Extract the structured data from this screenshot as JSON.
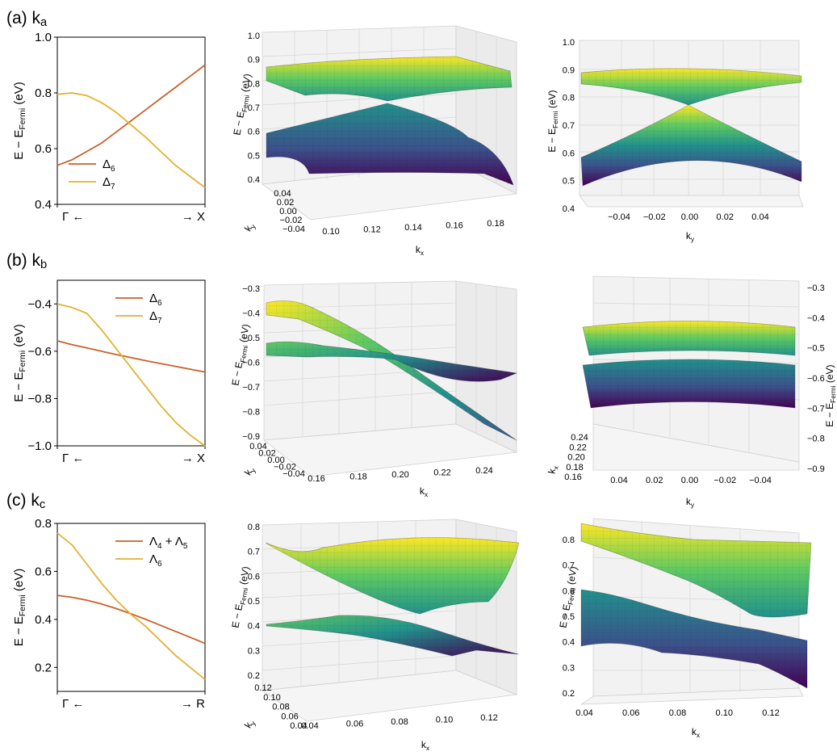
{
  "colors": {
    "delta6": "#c8612a",
    "delta7": "#e3b133",
    "viridis": [
      "#440154",
      "#3b528b",
      "#21918c",
      "#5ec962",
      "#fde725"
    ]
  },
  "panel_labels": [
    {
      "prefix": "(a) k",
      "sub": "a"
    },
    {
      "prefix": "(b) k",
      "sub": "b"
    },
    {
      "prefix": "(c) k",
      "sub": "c"
    }
  ],
  "chart_data": [
    {
      "type": "line",
      "row": "a",
      "ylabel": {
        "main": "E − E",
        "sub": "Fermi",
        "tail": " (eV)"
      },
      "xticks": {
        "left": "Γ ←",
        "right": "→ X"
      },
      "ylim": [
        0.4,
        1.0
      ],
      "yticks": [
        0.4,
        0.6,
        0.8,
        1.0
      ],
      "ytick_labels": [
        "0.4",
        "0.6",
        "0.8",
        "1.0"
      ],
      "legend_pos": "bottom-left",
      "x": [
        0,
        0.1,
        0.2,
        0.3,
        0.4,
        0.5,
        0.6,
        0.7,
        0.8,
        0.9,
        1.0
      ],
      "series": [
        {
          "name": "Δ",
          "sub": "6",
          "color_key": "delta6",
          "values": [
            0.54,
            0.56,
            0.59,
            0.62,
            0.66,
            0.7,
            0.74,
            0.78,
            0.82,
            0.86,
            0.9
          ]
        },
        {
          "name": "Δ",
          "sub": "7",
          "color_key": "delta7",
          "values": [
            0.795,
            0.8,
            0.79,
            0.765,
            0.73,
            0.685,
            0.64,
            0.59,
            0.54,
            0.5,
            0.46
          ]
        }
      ]
    },
    {
      "type": "line",
      "row": "b",
      "ylabel": {
        "main": "E − E",
        "sub": "Fermi",
        "tail": " (eV)"
      },
      "xticks": {
        "left": "Γ ←",
        "right": "→ X"
      },
      "ylim": [
        -1.0,
        -0.3
      ],
      "yticks": [
        -1.0,
        -0.8,
        -0.6,
        -0.4
      ],
      "ytick_labels": [
        "−1.0",
        "−0.8",
        "−0.6",
        "−0.4"
      ],
      "legend_pos": "top-right",
      "x": [
        0,
        0.1,
        0.2,
        0.3,
        0.4,
        0.5,
        0.6,
        0.7,
        0.8,
        0.9,
        1.0
      ],
      "series": [
        {
          "name": "Δ",
          "sub": "6",
          "color_key": "delta6",
          "values": [
            -0.556,
            -0.572,
            -0.586,
            -0.6,
            -0.614,
            -0.627,
            -0.64,
            -0.652,
            -0.664,
            -0.676,
            -0.688
          ]
        },
        {
          "name": "Δ",
          "sub": "7",
          "color_key": "delta7",
          "values": [
            -0.4,
            -0.415,
            -0.44,
            -0.51,
            -0.59,
            -0.67,
            -0.75,
            -0.83,
            -0.9,
            -0.955,
            -1.0
          ]
        }
      ]
    },
    {
      "type": "line",
      "row": "c",
      "ylabel": {
        "main": "E − E",
        "sub": "Fermi",
        "tail": " (eV)"
      },
      "xticks": {
        "left": "Γ ←",
        "right": "→ R"
      },
      "ylim": [
        0.1,
        0.8
      ],
      "yticks": [
        0.2,
        0.4,
        0.6,
        0.8
      ],
      "ytick_labels": [
        "0.2",
        "0.4",
        "0.6",
        "0.8"
      ],
      "legend_pos": "top-right",
      "x": [
        0,
        0.1,
        0.2,
        0.3,
        0.4,
        0.5,
        0.6,
        0.7,
        0.8,
        0.9,
        1.0
      ],
      "series": [
        {
          "name": "Λ",
          "sub": "4",
          "plus": " + Λ",
          "sub2": "5",
          "color_key": "delta6",
          "values": [
            0.5,
            0.492,
            0.48,
            0.464,
            0.445,
            0.423,
            0.4,
            0.375,
            0.35,
            0.325,
            0.3
          ]
        },
        {
          "name": "Λ",
          "sub": "6",
          "color_key": "delta7",
          "values": [
            0.76,
            0.71,
            0.63,
            0.55,
            0.48,
            0.42,
            0.37,
            0.31,
            0.25,
            0.2,
            0.15
          ]
        }
      ]
    },
    {
      "type": "surface3d",
      "row": "a",
      "view": "perspective",
      "zlabel": {
        "main": "E − E",
        "sub": "Fermi",
        "tail": " (eV)"
      },
      "xlabel": {
        "main": "k",
        "sub": "x"
      },
      "ylabel": {
        "main": "k",
        "sub": "y"
      },
      "zticks": [
        "1.0",
        "0.9",
        "0.8",
        "0.7",
        "0.6",
        "0.5",
        "0.4"
      ],
      "xticks": [
        "0.10",
        "0.12",
        "0.14",
        "0.16",
        "0.18"
      ],
      "yticks": [
        "0.04",
        "0.02",
        "0.00",
        "−0.02",
        "−0.04"
      ]
    },
    {
      "type": "surface3d",
      "row": "a",
      "view": "side",
      "zlabel": {
        "main": "E − E",
        "sub": "Fermi",
        "tail": " (eV)"
      },
      "xlabel": {
        "main": "k",
        "sub": "y"
      },
      "zticks": [
        "1.0",
        "0.9",
        "0.8",
        "0.7",
        "0.6",
        "0.5",
        "0.4"
      ],
      "xticks": [
        "−0.04",
        "−0.02",
        "0.00",
        "0.02",
        "0.04"
      ]
    },
    {
      "type": "surface3d",
      "row": "b",
      "view": "perspective",
      "zlabel": {
        "main": "E − E",
        "sub": "Fermi",
        "tail": " (eV)"
      },
      "xlabel": {
        "main": "k",
        "sub": "x"
      },
      "ylabel": {
        "main": "k",
        "sub": "y"
      },
      "zticks": [
        "−0.3",
        "−0.4",
        "−0.5",
        "−0.6",
        "−0.7",
        "−0.8",
        "−0.9"
      ],
      "xticks": [
        "0.16",
        "0.18",
        "0.20",
        "0.22",
        "0.24"
      ],
      "yticks": [
        "0.04",
        "0.02",
        "0.00",
        "−0.02",
        "−0.04"
      ]
    },
    {
      "type": "surface3d",
      "row": "b",
      "view": "side",
      "zlabel": {
        "main": "E − E",
        "sub": "Fermi",
        "tail": " (eV)"
      },
      "xlabel": {
        "main": "k",
        "sub": "y"
      },
      "ylabel": {
        "main": "k",
        "sub": "x"
      },
      "zticks": [
        "−0.3",
        "−0.4",
        "−0.5",
        "−0.6",
        "−0.7",
        "−0.8",
        "−0.9"
      ],
      "xticks": [
        "0.04",
        "0.02",
        "0.00",
        "−0.02",
        "−0.04"
      ],
      "yticks": [
        "0.24",
        "0.22",
        "0.20",
        "0.18",
        "0.16"
      ]
    },
    {
      "type": "surface3d",
      "row": "c",
      "view": "perspective",
      "zlabel": {
        "main": "E − E",
        "sub": "Fermi",
        "tail": " (eV)"
      },
      "xlabel": {
        "main": "k",
        "sub": "x"
      },
      "ylabel": {
        "main": "k",
        "sub": "y"
      },
      "zticks": [
        "0.8",
        "0.7",
        "0.6",
        "0.5",
        "0.4",
        "0.3",
        "0.2"
      ],
      "xticks": [
        "0.04",
        "0.06",
        "0.08",
        "0.10",
        "0.12"
      ],
      "yticks": [
        "0.12",
        "0.10",
        "0.08",
        "0.06",
        "0.04"
      ]
    },
    {
      "type": "surface3d",
      "row": "c",
      "view": "side",
      "zlabel": {
        "main": "E − E",
        "sub": "Fermi",
        "tail": " (eV)"
      },
      "xlabel": {
        "main": "k",
        "sub": "x"
      },
      "zticks": [
        "0.8",
        "0.7",
        "0.6",
        "0.5",
        "0.4",
        "0.3",
        "0.2"
      ],
      "xticks": [
        "0.04",
        "0.06",
        "0.08",
        "0.10",
        "0.12"
      ]
    }
  ]
}
